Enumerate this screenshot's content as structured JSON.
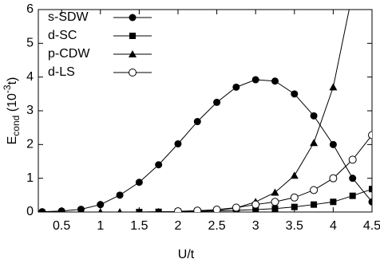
{
  "chart_data": {
    "type": "line",
    "x_label": "U/t",
    "y_label": {
      "main": "E",
      "sub": "cond",
      "pre": " (10",
      "sup": "-3",
      "post": "t)"
    },
    "x": [
      0.25,
      0.5,
      0.75,
      1.0,
      1.25,
      1.5,
      1.75,
      2.0,
      2.25,
      2.5,
      2.75,
      3.0,
      3.25,
      3.5,
      3.75,
      4.0,
      4.25,
      4.5
    ],
    "series": [
      {
        "name": "s-SDW",
        "color": "#000000",
        "marker": "filled-circle",
        "values": [
          0.01,
          0.03,
          0.08,
          0.22,
          0.5,
          0.88,
          1.4,
          2.02,
          2.68,
          3.25,
          3.7,
          3.92,
          3.88,
          3.5,
          2.85,
          2.0,
          1.0,
          0.3
        ]
      },
      {
        "name": "d-SC",
        "color": "#000000",
        "marker": "filled-square",
        "values": [
          null,
          null,
          null,
          null,
          null,
          0.0,
          0.005,
          0.01,
          0.02,
          0.03,
          0.05,
          0.07,
          0.1,
          0.15,
          0.22,
          0.3,
          0.48,
          0.68
        ]
      },
      {
        "name": "p-CDW",
        "color": "#000000",
        "marker": "filled-triangle",
        "values": [
          null,
          null,
          null,
          0.0,
          0.0,
          0.0,
          0.005,
          0.01,
          0.02,
          0.05,
          0.12,
          0.3,
          0.58,
          1.08,
          2.05,
          3.7,
          6.5,
          null
        ]
      },
      {
        "name": "d-LS",
        "color": "#000000",
        "marker": "open-circle",
        "values": [
          null,
          null,
          null,
          null,
          null,
          null,
          null,
          0.02,
          0.04,
          0.07,
          0.13,
          0.22,
          0.3,
          0.43,
          0.65,
          1.0,
          1.55,
          2.28
        ]
      }
    ],
    "xlim": [
      0.2,
      4.5
    ],
    "ylim": [
      0,
      6
    ],
    "xticks": [
      0.5,
      1,
      1.5,
      2,
      2.5,
      3,
      3.5,
      4,
      4.5
    ],
    "yticks": [
      0,
      1,
      2,
      3,
      4,
      5,
      6
    ],
    "legend": "top-left"
  }
}
